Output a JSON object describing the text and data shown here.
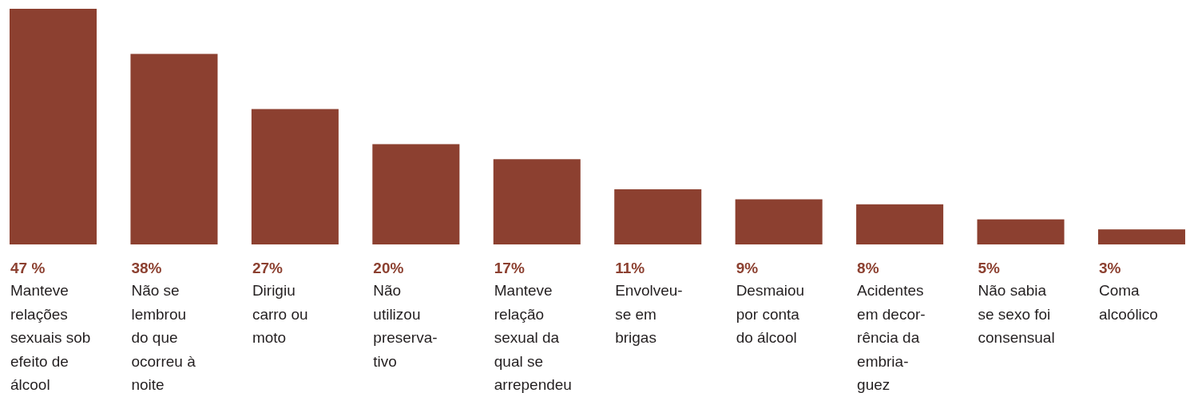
{
  "chart_data": {
    "type": "bar",
    "categories": [
      "Manteve\nrelações\nsexuais sob\nefeito de\nálcool",
      "Não se\nlembrou\ndo que\nocorreu à\nnoite",
      "Dirigiu\ncarro ou\nmoto",
      "Não\nutilizou\npreserva-\ntivo",
      "Manteve\nrelação\nsexual da\nqual se\narrependeu",
      "Envolveu-\nse em\nbrigas",
      "Desmaiou\npor conta\ndo álcool",
      "Acidentes\nem decor-\nrência da\nembria-\nguez",
      "Não sabia\nse sexo foi\nconsensual",
      "Coma\nalcoólico"
    ],
    "values": [
      47,
      38,
      27,
      20,
      17,
      11,
      9,
      8,
      5,
      3
    ],
    "value_labels": [
      "47 %",
      "38%",
      "27%",
      "20%",
      "17%",
      "11%",
      "9%",
      "8%",
      "5%",
      "3%"
    ],
    "color": "#8c4030"
  }
}
